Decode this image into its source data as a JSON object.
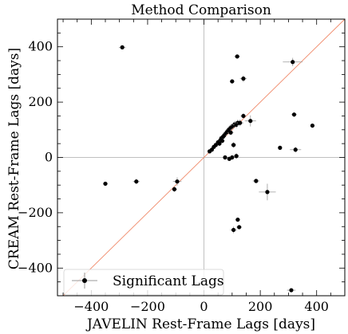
{
  "chart_data": {
    "type": "scatter",
    "title": "Method Comparison",
    "xlabel": "JAVELIN Rest-Frame Lags [days]",
    "ylabel": "CREAM Rest-Frame Lags [days]",
    "xlim": [
      -520,
      500
    ],
    "ylim": [
      -500,
      500
    ],
    "xticks": [
      -400,
      -200,
      0,
      200,
      400
    ],
    "yticks": [
      -400,
      -200,
      0,
      200,
      400
    ],
    "xticklabels": [
      "−400",
      "−200",
      "0",
      "200",
      "400"
    ],
    "yticklabels": [
      "−400",
      "−200",
      "0",
      "200",
      "400"
    ],
    "grid": false,
    "reference_lines": {
      "zero_lines": true,
      "one_to_one": true
    },
    "colors": {
      "points": "#000000",
      "errorbars": "#9a9a9a",
      "one_to_one": "#f08a6a",
      "zero_lines": "#c0c0c0"
    },
    "legend": {
      "placement": "lower-left",
      "entries": [
        "Significant Lags"
      ]
    },
    "series": [
      {
        "name": "Significant Lags",
        "points": [
          {
            "x": -290,
            "y": 398,
            "xerr": 12,
            "yerr": 5
          },
          {
            "x": -350,
            "y": -95,
            "xerr": 8,
            "yerr": 4
          },
          {
            "x": -240,
            "y": -87,
            "xerr": 12,
            "yerr": 10
          },
          {
            "x": -95,
            "y": -87,
            "xerr": 15,
            "yerr": 15
          },
          {
            "x": -105,
            "y": -115,
            "xerr": 10,
            "yerr": 10
          },
          {
            "x": 20,
            "y": 22,
            "xerr": 5,
            "yerr": 5
          },
          {
            "x": 28,
            "y": 28,
            "xerr": 5,
            "yerr": 5
          },
          {
            "x": 35,
            "y": 38,
            "xerr": 6,
            "yerr": 6
          },
          {
            "x": 42,
            "y": 45,
            "xerr": 6,
            "yerr": 6
          },
          {
            "x": 50,
            "y": 55,
            "xerr": 8,
            "yerr": 8
          },
          {
            "x": 58,
            "y": 62,
            "xerr": 8,
            "yerr": 8
          },
          {
            "x": 62,
            "y": 70,
            "xerr": 8,
            "yerr": 8
          },
          {
            "x": 68,
            "y": 75,
            "xerr": 8,
            "yerr": 8
          },
          {
            "x": 72,
            "y": 80,
            "xerr": 8,
            "yerr": 8
          },
          {
            "x": 78,
            "y": 88,
            "xerr": 10,
            "yerr": 10
          },
          {
            "x": 82,
            "y": 92,
            "xerr": 10,
            "yerr": 10
          },
          {
            "x": 86,
            "y": 98,
            "xerr": 10,
            "yerr": 10
          },
          {
            "x": 90,
            "y": 102,
            "xerr": 10,
            "yerr": 10
          },
          {
            "x": 95,
            "y": 108,
            "xerr": 10,
            "yerr": 10
          },
          {
            "x": 100,
            "y": 112,
            "xerr": 10,
            "yerr": 10
          },
          {
            "x": 105,
            "y": 116,
            "xerr": 12,
            "yerr": 12
          },
          {
            "x": 110,
            "y": 120,
            "xerr": 12,
            "yerr": 12
          },
          {
            "x": 115,
            "y": 118,
            "xerr": 12,
            "yerr": 12
          },
          {
            "x": 120,
            "y": 125,
            "xerr": 12,
            "yerr": 12
          },
          {
            "x": 128,
            "y": 125,
            "xerr": 12,
            "yerr": 12
          },
          {
            "x": 140,
            "y": 150,
            "xerr": 10,
            "yerr": 10
          },
          {
            "x": 165,
            "y": 132,
            "xerr": 20,
            "yerr": 20
          },
          {
            "x": 95,
            "y": 90,
            "xerr": 10,
            "yerr": 10
          },
          {
            "x": 65,
            "y": 60,
            "xerr": 8,
            "yerr": 8
          },
          {
            "x": 55,
            "y": 50,
            "xerr": 8,
            "yerr": 8
          },
          {
            "x": 100,
            "y": 275,
            "xerr": 8,
            "yerr": 8
          },
          {
            "x": 140,
            "y": 285,
            "xerr": 12,
            "yerr": 12
          },
          {
            "x": 118,
            "y": 365,
            "xerr": 10,
            "yerr": 5
          },
          {
            "x": 315,
            "y": 345,
            "xerr": 35,
            "yerr": 15
          },
          {
            "x": 320,
            "y": 155,
            "xerr": 10,
            "yerr": 8
          },
          {
            "x": 385,
            "y": 115,
            "xerr": 5,
            "yerr": 5
          },
          {
            "x": 325,
            "y": 28,
            "xerr": 20,
            "yerr": 10
          },
          {
            "x": 270,
            "y": 35,
            "xerr": 5,
            "yerr": 5
          },
          {
            "x": 75,
            "y": 0,
            "xerr": 8,
            "yerr": 8
          },
          {
            "x": 90,
            "y": -5,
            "xerr": 8,
            "yerr": 8
          },
          {
            "x": 100,
            "y": 0,
            "xerr": 8,
            "yerr": 8
          },
          {
            "x": 105,
            "y": 45,
            "xerr": 10,
            "yerr": 10
          },
          {
            "x": 115,
            "y": 5,
            "xerr": 10,
            "yerr": 10
          },
          {
            "x": 185,
            "y": -85,
            "xerr": 12,
            "yerr": 8
          },
          {
            "x": 225,
            "y": -125,
            "xerr": 30,
            "yerr": 30
          },
          {
            "x": 120,
            "y": -225,
            "xerr": 8,
            "yerr": 8
          },
          {
            "x": 125,
            "y": -252,
            "xerr": 10,
            "yerr": 8
          },
          {
            "x": 105,
            "y": -262,
            "xerr": 12,
            "yerr": 12
          },
          {
            "x": 310,
            "y": -480,
            "xerr": 15,
            "yerr": 5
          }
        ]
      }
    ]
  }
}
